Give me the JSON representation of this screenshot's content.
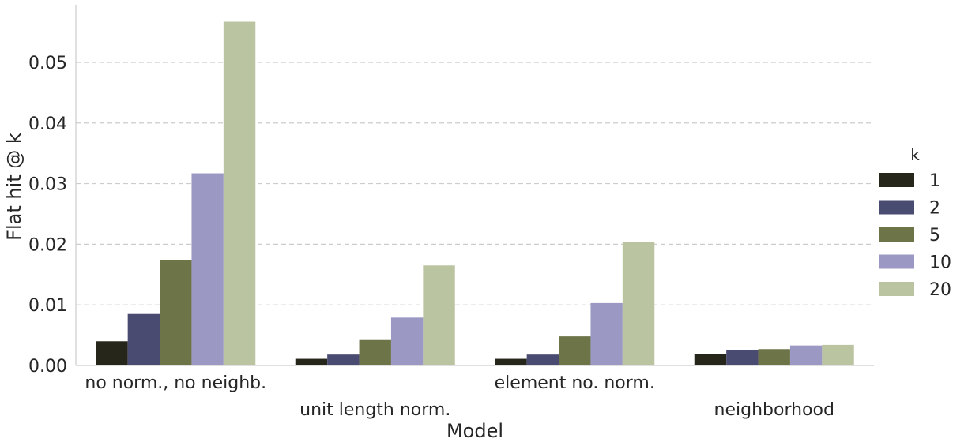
{
  "chart_data": {
    "type": "bar",
    "categories": [
      "no norm., no neighb.",
      "unit length norm.",
      "element no. norm.",
      "neighborhood"
    ],
    "series": [
      {
        "name": "1",
        "values": [
          0.004,
          0.0011,
          0.0011,
          0.0019
        ],
        "color": "#27261a"
      },
      {
        "name": "2",
        "values": [
          0.0085,
          0.0018,
          0.0018,
          0.0026
        ],
        "color": "#4a4b70"
      },
      {
        "name": "5",
        "values": [
          0.0174,
          0.0042,
          0.0048,
          0.0027
        ],
        "color": "#6d7447"
      },
      {
        "name": "10",
        "values": [
          0.0317,
          0.0079,
          0.0103,
          0.0033
        ],
        "color": "#9b99c3"
      },
      {
        "name": "20",
        "values": [
          0.0567,
          0.0165,
          0.0204,
          0.0034
        ],
        "color": "#bac4a1"
      }
    ],
    "ylim": [
      0,
      0.0595
    ],
    "yticks": [
      0.0,
      0.01,
      0.02,
      0.03,
      0.04,
      0.05
    ],
    "ytick_labels": [
      "0.00",
      "0.01",
      "0.02",
      "0.03",
      "0.04",
      "0.05"
    ],
    "xlabel": "Model",
    "ylabel": "Flat hit @ k",
    "legend_title": "k",
    "legend_position": "right",
    "grid": "horizontal dashed"
  }
}
